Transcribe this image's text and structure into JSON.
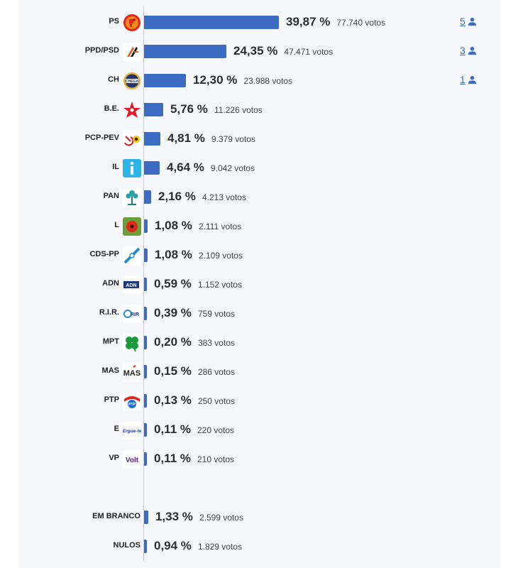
{
  "chart_data": {
    "type": "bar",
    "orientation": "horizontal",
    "vote_suffix": "votos",
    "parties": [
      {
        "name": "PS",
        "pct": 39.87,
        "pct_label": "39,87 %",
        "votes_label": "77.740 votos",
        "seats": "5",
        "logo": "ps-fist-rose-icon"
      },
      {
        "name": "PPD/PSD",
        "pct": 24.35,
        "pct_label": "24,35 %",
        "votes_label": "47.471 votos",
        "seats": "3",
        "logo": "psd-arrows-icon"
      },
      {
        "name": "CH",
        "pct": 12.3,
        "pct_label": "12,30 %",
        "votes_label": "23.988 votos",
        "seats": "1",
        "logo": "chega-badge-icon"
      },
      {
        "name": "B.E.",
        "pct": 5.76,
        "pct_label": "5,76 %",
        "votes_label": "11.226 votos",
        "seats": "",
        "logo": "bloco-star-icon"
      },
      {
        "name": "PCP-PEV",
        "pct": 4.81,
        "pct_label": "4,81 %",
        "votes_label": "9.379 votos",
        "seats": "",
        "logo": "hammer-sickle-sunflower-icon"
      },
      {
        "name": "IL",
        "pct": 4.64,
        "pct_label": "4,64 %",
        "votes_label": "9.042 votos",
        "seats": "",
        "logo": "iniciativa-liberal-i-icon"
      },
      {
        "name": "PAN",
        "pct": 2.16,
        "pct_label": "2,16 %",
        "votes_label": "4.213 votos",
        "seats": "",
        "logo": "pan-tree-icon"
      },
      {
        "name": "L",
        "pct": 1.08,
        "pct_label": "1,08 %",
        "votes_label": "2.111 votos",
        "seats": "",
        "logo": "livre-poppy-icon"
      },
      {
        "name": "CDS-PP",
        "pct": 1.08,
        "pct_label": "1,08 %",
        "votes_label": "2.109 votos",
        "seats": "",
        "logo": "cds-arrow-icon"
      },
      {
        "name": "ADN",
        "pct": 0.59,
        "pct_label": "0,59 %",
        "votes_label": "1.152 votos",
        "seats": "",
        "logo": "adn-logo-icon"
      },
      {
        "name": "R.I.R.",
        "pct": 0.39,
        "pct_label": "0,39 %",
        "votes_label": "759 votos",
        "seats": "",
        "logo": "rir-logo-icon"
      },
      {
        "name": "MPT",
        "pct": 0.2,
        "pct_label": "0,20 %",
        "votes_label": "383 votos",
        "seats": "",
        "logo": "mpt-clover-icon"
      },
      {
        "name": "MAS",
        "pct": 0.15,
        "pct_label": "0,15 %",
        "votes_label": "286 votos",
        "seats": "",
        "logo": "mas-text-icon"
      },
      {
        "name": "PTP",
        "pct": 0.13,
        "pct_label": "0,13 %",
        "votes_label": "250 votos",
        "seats": "",
        "logo": "ptp-logo-icon"
      },
      {
        "name": "E",
        "pct": 0.11,
        "pct_label": "0,11 %",
        "votes_label": "220 votos",
        "seats": "",
        "logo": "ergue-te-logo-icon"
      },
      {
        "name": "VP",
        "pct": 0.11,
        "pct_label": "0,11 %",
        "votes_label": "210 votos",
        "seats": "",
        "logo": "volt-logo-icon"
      }
    ],
    "other": [
      {
        "name": "EM BRANCO",
        "pct": 1.33,
        "pct_label": "1,33 %",
        "votes_label": "2.599 votos"
      },
      {
        "name": "NULOS",
        "pct": 0.94,
        "pct_label": "0,94 %",
        "votes_label": "1.829 votos"
      }
    ],
    "logo_texts": {
      "ch": "CHEGA",
      "adn": "ADN",
      "rir": "RIR",
      "mas": "MAS",
      "ptp": "PTP",
      "e": "Ergue-te",
      "vp": "Volt"
    },
    "colors": {
      "bar": "#3b6bc2",
      "link": "#3b6bc2"
    }
  }
}
